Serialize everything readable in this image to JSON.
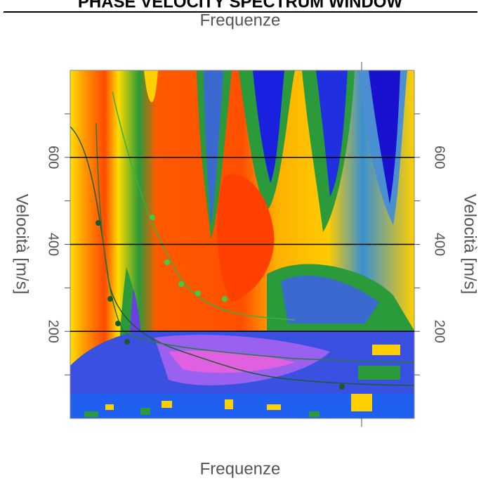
{
  "header": {
    "title": "PHASE VELOCITY SPECTRUM WINDOW"
  },
  "chart_data": {
    "type": "heatmap",
    "title": "Frequenze",
    "xlabel": "Frequenze",
    "ylabel": "Velocità [m/s]",
    "ylim": [
      0,
      800
    ],
    "yticks": [
      200,
      400,
      600
    ],
    "yminorticks": [
      100,
      300,
      500,
      700
    ],
    "grid": true
  }
}
